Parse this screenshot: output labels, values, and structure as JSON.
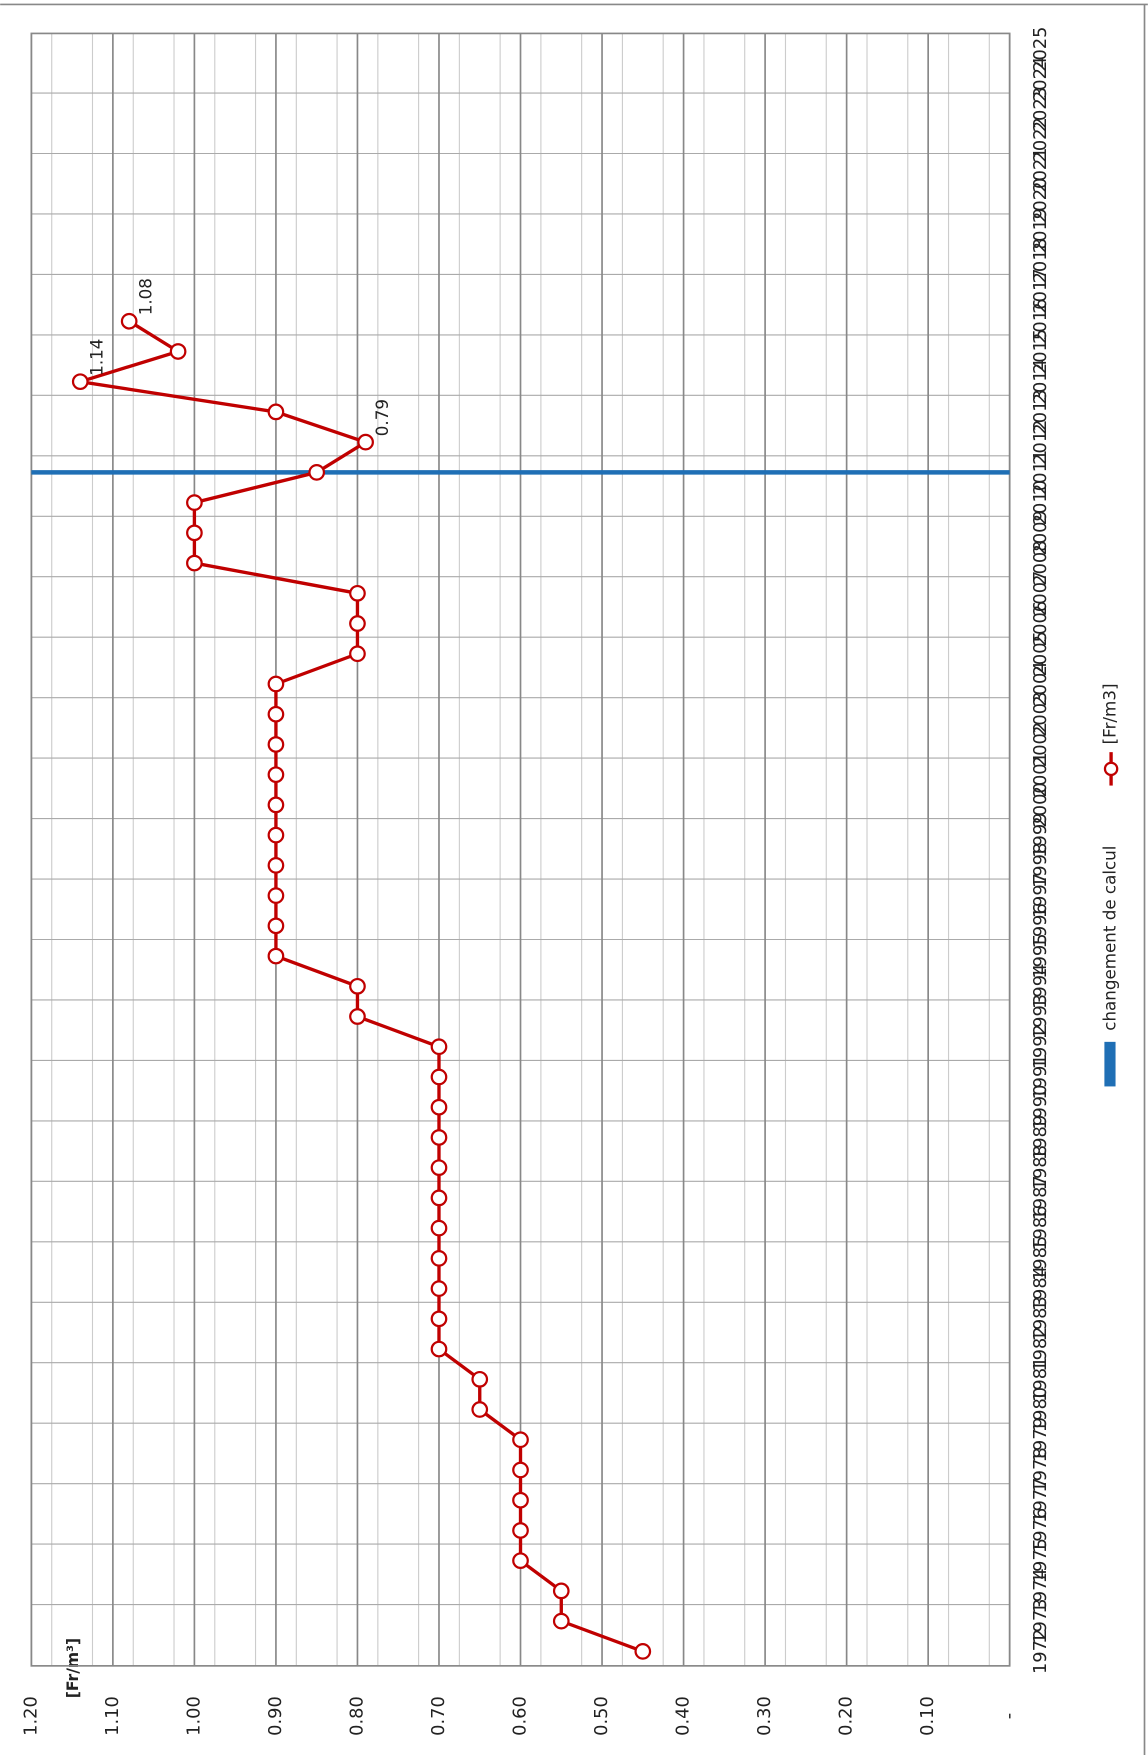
{
  "chart_data": {
    "type": "line",
    "y_label": "[Fr/m³]",
    "categories": [
      "1972",
      "1973",
      "1974",
      "1975",
      "1976",
      "1977",
      "1978",
      "1979",
      "1980",
      "1981",
      "1982",
      "1983",
      "1984",
      "1985",
      "1986",
      "1987",
      "1988",
      "1989",
      "1990",
      "1991",
      "1992",
      "1993",
      "1994",
      "1995",
      "1996",
      "1997",
      "1998",
      "1999",
      "2000",
      "2001",
      "2002",
      "2003",
      "2004",
      "2005",
      "2006",
      "2007",
      "2008",
      "2009",
      "2010",
      "2011",
      "2012",
      "2013",
      "2014",
      "2015",
      "2016",
      "2017",
      "2018",
      "2019",
      "2020",
      "2021",
      "2022",
      "2023",
      "2024",
      "2025"
    ],
    "series": [
      {
        "name": "[Fr/m3]",
        "color": "#c00000",
        "values": [
          0.45,
          0.55,
          0.55,
          0.6,
          0.6,
          0.6,
          0.6,
          0.6,
          0.65,
          0.65,
          0.7,
          0.7,
          0.7,
          0.7,
          0.7,
          0.7,
          0.7,
          0.7,
          0.7,
          0.7,
          0.7,
          0.8,
          0.8,
          0.9,
          0.9,
          0.9,
          0.9,
          0.9,
          0.9,
          0.9,
          0.9,
          0.9,
          0.9,
          0.8,
          0.8,
          0.8,
          1.0,
          1.0,
          1.0,
          0.85,
          0.79,
          0.9,
          1.14,
          1.02,
          1.08,
          null,
          null,
          null,
          null,
          null,
          null,
          null,
          null,
          null
        ],
        "value_labels": [
          null,
          null,
          null,
          null,
          null,
          null,
          null,
          null,
          null,
          null,
          null,
          null,
          null,
          null,
          null,
          null,
          null,
          null,
          null,
          null,
          null,
          null,
          null,
          null,
          null,
          null,
          null,
          null,
          null,
          null,
          null,
          null,
          null,
          null,
          null,
          null,
          null,
          null,
          null,
          null,
          "0.79",
          null,
          "1.14",
          null,
          "1.08",
          null,
          null,
          null,
          null,
          null,
          null,
          null,
          null,
          null
        ]
      }
    ],
    "reference_line": {
      "name": "changement de calcul",
      "category": "2011",
      "color": "#1f6fb5"
    },
    "ylim": [
      0,
      1.2
    ],
    "yticks": [
      {
        "value": 0,
        "label": "-"
      },
      {
        "value": 0.1,
        "label": "0.10"
      },
      {
        "value": 0.2,
        "label": "0.20"
      },
      {
        "value": 0.3,
        "label": "0.30"
      },
      {
        "value": 0.4,
        "label": "0.40"
      },
      {
        "value": 0.5,
        "label": "0.50"
      },
      {
        "value": 0.6,
        "label": "0.60"
      },
      {
        "value": 0.7,
        "label": "0.70"
      },
      {
        "value": 0.8,
        "label": "0.80"
      },
      {
        "value": 0.9,
        "label": "0.90"
      },
      {
        "value": 1.0,
        "label": "1.00"
      },
      {
        "value": 1.1,
        "label": "1.10"
      },
      {
        "value": 1.2,
        "label": "1.20"
      }
    ],
    "grid": true
  }
}
